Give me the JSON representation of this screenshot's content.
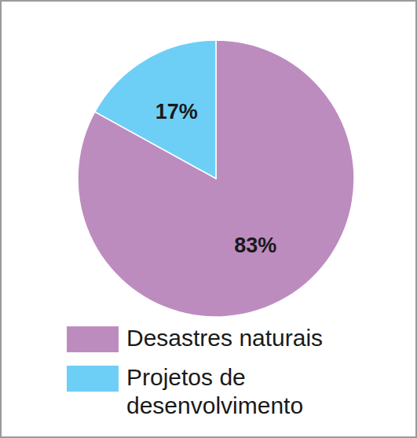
{
  "chart_data": {
    "type": "pie",
    "categories": [
      "Desastres naturais",
      "Projetos de desenvolvimento"
    ],
    "values": [
      83,
      17
    ],
    "value_labels": [
      "83%",
      "17%"
    ],
    "colors": [
      "#bd8cbf",
      "#6dcff6"
    ],
    "data_labels": true,
    "legend": "bottom"
  }
}
